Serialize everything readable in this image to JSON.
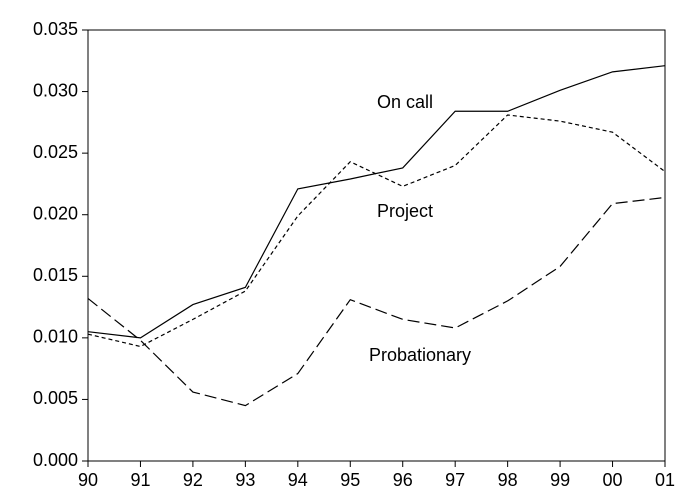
{
  "chart_data": {
    "type": "line",
    "categories": [
      "90",
      "91",
      "92",
      "93",
      "94",
      "95",
      "96",
      "97",
      "98",
      "99",
      "00",
      "01"
    ],
    "series": [
      {
        "name": "On call",
        "color": "#000000",
        "line_style": "solid",
        "values": [
          0.0105,
          0.01,
          0.0127,
          0.0141,
          0.0221,
          0.0229,
          0.0238,
          0.0284,
          0.0284,
          0.0301,
          0.0316,
          0.0321
        ]
      },
      {
        "name": "Project",
        "color": "#000000",
        "line_style": "short-dash",
        "values": [
          0.0103,
          0.0093,
          0.0115,
          0.0138,
          0.0199,
          0.0243,
          0.0223,
          0.024,
          0.0281,
          0.0276,
          0.0267,
          0.0235
        ]
      },
      {
        "name": "Probationary",
        "color": "#000000",
        "line_style": "long-dash",
        "values": [
          0.0132,
          0.0098,
          0.0056,
          0.0045,
          0.0071,
          0.0131,
          0.0115,
          0.0108,
          0.013,
          0.0158,
          0.0209,
          0.0214
        ]
      }
    ],
    "ylim": [
      0,
      0.035
    ],
    "yticks": [
      {
        "value": 0,
        "label": "0.000"
      },
      {
        "value": 0.005,
        "label": "0.005"
      },
      {
        "value": 0.01,
        "label": "0.010"
      },
      {
        "value": 0.015,
        "label": "0.015"
      },
      {
        "value": 0.02,
        "label": "0.020"
      },
      {
        "value": 0.025,
        "label": "0.025"
      },
      {
        "value": 0.03,
        "label": "0.030"
      },
      {
        "value": 0.035,
        "label": "0.035"
      }
    ],
    "grid": false
  }
}
